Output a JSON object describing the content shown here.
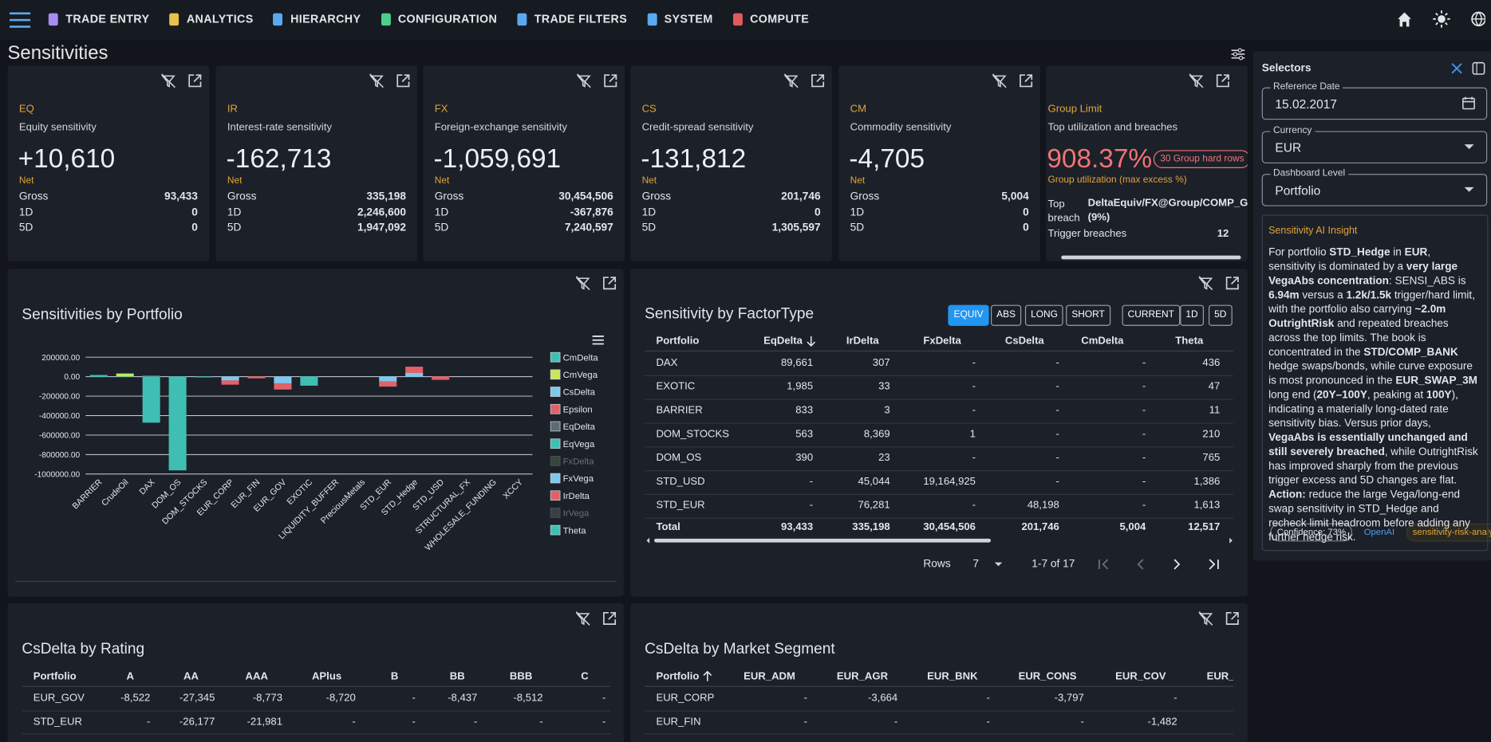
{
  "nav": {
    "items": [
      "TRADE ENTRY",
      "ANALYTICS",
      "HIERARCHY",
      "CONFIGURATION",
      "TRADE FILTERS",
      "SYSTEM",
      "COMPUTE"
    ]
  },
  "page_title": "Sensitivities",
  "cards": [
    {
      "code": "EQ",
      "desc": "Equity sensitivity",
      "net": "+10,610",
      "net_label": "Net",
      "rows": [
        [
          "Gross",
          "93,433"
        ],
        [
          "1D",
          "0"
        ],
        [
          "5D",
          "0"
        ]
      ]
    },
    {
      "code": "IR",
      "desc": "Interest-rate sensitivity",
      "net": "-162,713",
      "net_label": "Net",
      "rows": [
        [
          "Gross",
          "335,198"
        ],
        [
          "1D",
          "2,246,600"
        ],
        [
          "5D",
          "1,947,092"
        ]
      ]
    },
    {
      "code": "FX",
      "desc": "Foreign-exchange sensitivity",
      "net": "-1,059,691",
      "net_label": "Net",
      "rows": [
        [
          "Gross",
          "30,454,506"
        ],
        [
          "1D",
          "-367,876"
        ],
        [
          "5D",
          "7,240,597"
        ]
      ]
    },
    {
      "code": "CS",
      "desc": "Credit-spread sensitivity",
      "net": "-131,812",
      "net_label": "Net",
      "rows": [
        [
          "Gross",
          "201,746"
        ],
        [
          "1D",
          "0"
        ],
        [
          "5D",
          "1,305,597"
        ]
      ]
    },
    {
      "code": "CM",
      "desc": "Commodity sensitivity",
      "net": "-4,705",
      "net_label": "Net",
      "rows": [
        [
          "Gross",
          "5,004"
        ],
        [
          "1D",
          "0"
        ],
        [
          "5D",
          "0"
        ]
      ]
    }
  ],
  "group_limit": {
    "code": "Group Limit",
    "desc": "Top utilization and breaches",
    "value": "908.37%",
    "badge": "30 Group hard rows",
    "sub": "Group utilization (max excess %)",
    "top_breach_label": "Top breach",
    "top_breach": "DeltaEquiv/FX@Group/COMP_GRO",
    "top_breach_pct": "(9%)",
    "trigger_label": "Trigger breaches",
    "trigger": "12"
  },
  "selectors": {
    "title": "Selectors",
    "fields": [
      {
        "label": "Reference Date",
        "value": "15.02.2017"
      },
      {
        "label": "Currency",
        "value": "EUR"
      },
      {
        "label": "Dashboard Level",
        "value": "Portfolio"
      }
    ]
  },
  "insight": {
    "title": "Sensitivity AI Insight",
    "body": [
      {
        "t": "For portfolio ",
        "b": false
      },
      {
        "t": "STD_Hedge",
        "b": true
      },
      {
        "t": " in ",
        "b": false
      },
      {
        "t": "EUR",
        "b": true
      },
      {
        "t": ", sensitivity is dominated by a ",
        "b": false
      },
      {
        "t": "very large VegaAbs concentration",
        "b": true
      },
      {
        "t": ": SENSI_ABS is ",
        "b": false
      },
      {
        "t": "6.94m",
        "b": true
      },
      {
        "t": " versus a ",
        "b": false
      },
      {
        "t": "1.2k/1.5k",
        "b": true
      },
      {
        "t": " trigger/hard limit, with the portfolio also carrying ",
        "b": false
      },
      {
        "t": "~2.0m OutrightRisk",
        "b": true
      },
      {
        "t": " and repeated breaches across the top limits. The book is concentrated in the ",
        "b": false
      },
      {
        "t": "STD/COMP_BANK",
        "b": true
      },
      {
        "t": " hedge swaps/bonds, while curve exposure is most pronounced in the ",
        "b": false
      },
      {
        "t": "EUR_SWAP_3M",
        "b": true
      },
      {
        "t": " long end (",
        "b": false
      },
      {
        "t": "20Y–100Y",
        "b": true
      },
      {
        "t": ", peaking at ",
        "b": false
      },
      {
        "t": "100Y",
        "b": true
      },
      {
        "t": "), indicating a materially long-dated rate sensitivity bias. Versus prior days, ",
        "b": false
      },
      {
        "t": "VegaAbs is essentially unchanged and still severely breached",
        "b": true
      },
      {
        "t": ", while OutrightRisk has improved sharply from the previous trigger excess and 5D changes are flat. ",
        "b": false
      },
      {
        "t": "Action:",
        "b": true
      },
      {
        "t": " reduce the large Vega/long-end swap sensitivity in STD_Hedge and recheck limit headroom before adding any further hedge risk.",
        "b": false
      }
    ],
    "chips": [
      "Confidence: 73%",
      "OpenAI",
      "sensitivity-risk-analy"
    ]
  },
  "chart_data": {
    "type": "bar",
    "stacked": true,
    "title": "Sensitivities by Portfolio",
    "categories": [
      "BARRIER",
      "CrudeOil",
      "DAX",
      "DOM_OS",
      "DOM_STOCKS",
      "EUR_CORP",
      "EUR_FIN",
      "EUR_GOV",
      "EXOTIC",
      "LIQUIDITY_BUFFER",
      "PreciousMetals",
      "STD_EUR",
      "STD_Hedge",
      "STD_USD",
      "STRUCTURAL_FX",
      "WHOLESALE_FUNDING",
      "XCCY"
    ],
    "series": [
      {
        "name": "CmDelta",
        "color": "#3fbfb4",
        "values": [
          0,
          5000,
          0,
          0,
          0,
          0,
          0,
          0,
          0,
          0,
          0,
          0,
          0,
          0,
          0,
          0,
          0
        ]
      },
      {
        "name": "CmVega",
        "color": "#c8e65a",
        "values": [
          0,
          25000,
          0,
          0,
          0,
          0,
          0,
          0,
          0,
          0,
          0,
          0,
          0,
          0,
          0,
          0,
          0
        ]
      },
      {
        "name": "CsDelta",
        "color": "#7ec8ef",
        "values": [
          0,
          0,
          0,
          0,
          0,
          -40000,
          0,
          -70000,
          0,
          0,
          0,
          -50000,
          40000,
          0,
          0,
          0,
          0
        ]
      },
      {
        "name": "Epsilon",
        "color": "#e06268",
        "values": [
          0,
          0,
          0,
          0,
          0,
          0,
          0,
          0,
          0,
          0,
          0,
          0,
          0,
          0,
          0,
          0,
          0
        ]
      },
      {
        "name": "EqDelta",
        "color": "#5d6b76",
        "values": [
          0,
          0,
          10000,
          0,
          0,
          0,
          0,
          0,
          0,
          0,
          0,
          0,
          0,
          0,
          0,
          0,
          0
        ]
      },
      {
        "name": "EqVega",
        "color": "#3fbfb4",
        "values": [
          15000,
          0,
          -470000,
          -960000,
          -5000,
          0,
          0,
          0,
          -90000,
          0,
          0,
          0,
          0,
          0,
          0,
          0,
          0
        ]
      },
      {
        "name": "FxDelta",
        "color": "#35463a",
        "visible": false
      },
      {
        "name": "FxVega",
        "color": "#7ec8ef",
        "values": [
          0,
          0,
          0,
          0,
          0,
          0,
          0,
          0,
          0,
          0,
          0,
          0,
          0,
          0,
          0,
          0,
          0
        ]
      },
      {
        "name": "IrDelta",
        "color": "#e06268",
        "values": [
          0,
          0,
          0,
          0,
          0,
          -40000,
          -15000,
          -60000,
          0,
          0,
          0,
          -50000,
          60000,
          -30000,
          0,
          0,
          0
        ]
      },
      {
        "name": "IrVega",
        "color": "#3a3f46",
        "visible": false
      },
      {
        "name": "Theta",
        "color": "#3fbfb4",
        "values": [
          0,
          0,
          0,
          0,
          0,
          0,
          0,
          0,
          0,
          0,
          0,
          0,
          0,
          0,
          0,
          0,
          0
        ]
      }
    ],
    "ylim": [
      -1000000,
      200000
    ],
    "yticks": [
      {
        "value": 200000,
        "label": "200000.00"
      },
      {
        "value": 0,
        "label": "0.00"
      },
      {
        "value": -200000,
        "label": "-200000.00"
      },
      {
        "value": -400000,
        "label": "-400000.00"
      },
      {
        "value": -600000,
        "label": "-600000.00"
      },
      {
        "value": -800000,
        "label": "-800000.00"
      },
      {
        "value": -1000000,
        "label": "-1000000.00"
      }
    ],
    "grid": true
  },
  "factor_table": {
    "title": "Sensitivity by FactorType",
    "toggles": [
      "EQUIV",
      "ABS",
      "LONG",
      "SHORT"
    ],
    "active_toggle": 0,
    "periods": [
      "CURRENT",
      "1D",
      "5D"
    ],
    "headers": [
      "Portfolio",
      "EqDelta",
      "IrDelta",
      "FxDelta",
      "CsDelta",
      "CmDelta",
      "Theta"
    ],
    "rows": [
      [
        "DAX",
        "89,661",
        "307",
        "-",
        "-",
        "-",
        "436"
      ],
      [
        "EXOTIC",
        "1,985",
        "33",
        "-",
        "-",
        "-",
        "47"
      ],
      [
        "BARRIER",
        "833",
        "3",
        "-",
        "-",
        "-",
        "11"
      ],
      [
        "DOM_STOCKS",
        "563",
        "8,369",
        "1",
        "-",
        "-",
        "210"
      ],
      [
        "DOM_OS",
        "390",
        "23",
        "-",
        "-",
        "-",
        "765"
      ],
      [
        "STD_USD",
        "-",
        "45,044",
        "19,164,925",
        "-",
        "-",
        "1,386"
      ],
      [
        "STD_EUR",
        "-",
        "76,281",
        "-",
        "48,198",
        "-",
        "1,613"
      ]
    ],
    "total": [
      "Total",
      "93,433",
      "335,198",
      "30,454,506",
      "201,746",
      "5,004",
      "12,517"
    ],
    "rows_label": "Rows",
    "rows_per_page": "7",
    "range": "1-7 of 17"
  },
  "rating_table": {
    "title": "CsDelta by Rating",
    "headers": [
      "Portfolio",
      "A",
      "AA",
      "AAA",
      "APlus",
      "B",
      "BB",
      "BBB",
      "C"
    ],
    "rows": [
      [
        "EUR_GOV",
        "-8,522",
        "-27,345",
        "-8,773",
        "-8,720",
        "-",
        "-8,437",
        "-8,512",
        "-"
      ],
      [
        "STD_EUR",
        "-",
        "-26,177",
        "-21,981",
        "-",
        "-",
        "-",
        "-",
        "-"
      ]
    ]
  },
  "segment_table": {
    "title": "CsDelta by Market Segment",
    "headers": [
      "Portfolio",
      "EUR_ADM",
      "EUR_AGR",
      "EUR_BNK",
      "EUR_CONS",
      "EUR_COV",
      "EUR_D"
    ],
    "rows": [
      [
        "EUR_CORP",
        "-",
        "-3,664",
        "-",
        "-3,797",
        "-",
        ""
      ],
      [
        "EUR_FIN",
        "-",
        "-",
        "-",
        "-",
        "-1,482",
        ""
      ]
    ]
  }
}
